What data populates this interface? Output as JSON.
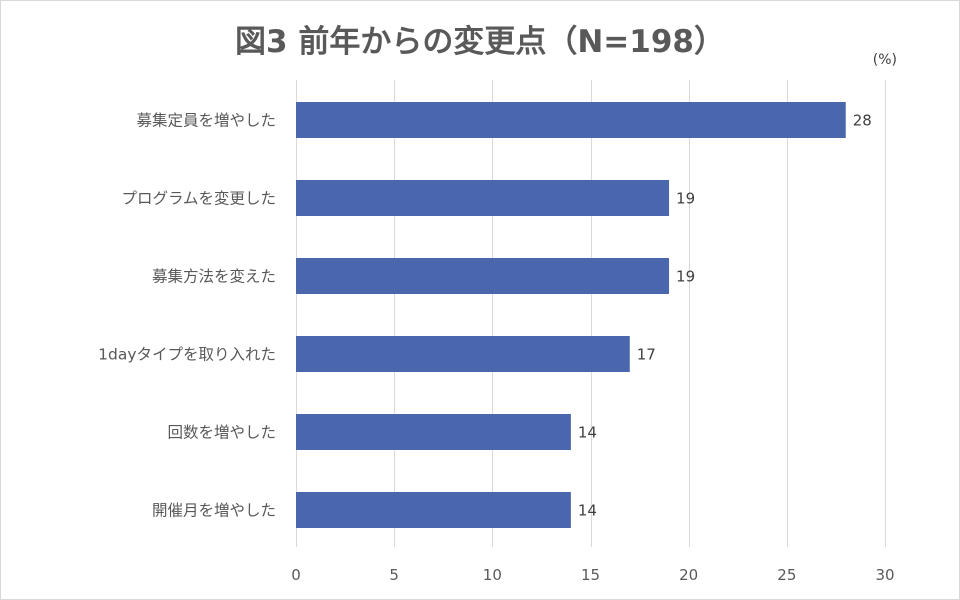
{
  "chart_data": {
    "type": "bar",
    "orientation": "horizontal",
    "title": "図3 前年からの変更点（N=198）",
    "unit_label": "(%)",
    "categories": [
      "募集定員を増やした",
      "プログラムを変更した",
      "募集方法を変えた",
      "1dayタイプを取り入れた",
      "回数を増やした",
      "開催月を増やした"
    ],
    "values": [
      28,
      19,
      19,
      17,
      14,
      14
    ],
    "xlim": [
      0,
      30
    ],
    "x_ticks": [
      0,
      5,
      10,
      15,
      20,
      25,
      30
    ],
    "grid": true,
    "bar_color": "#4a66ac",
    "grid_color": "#d9d9d9"
  }
}
